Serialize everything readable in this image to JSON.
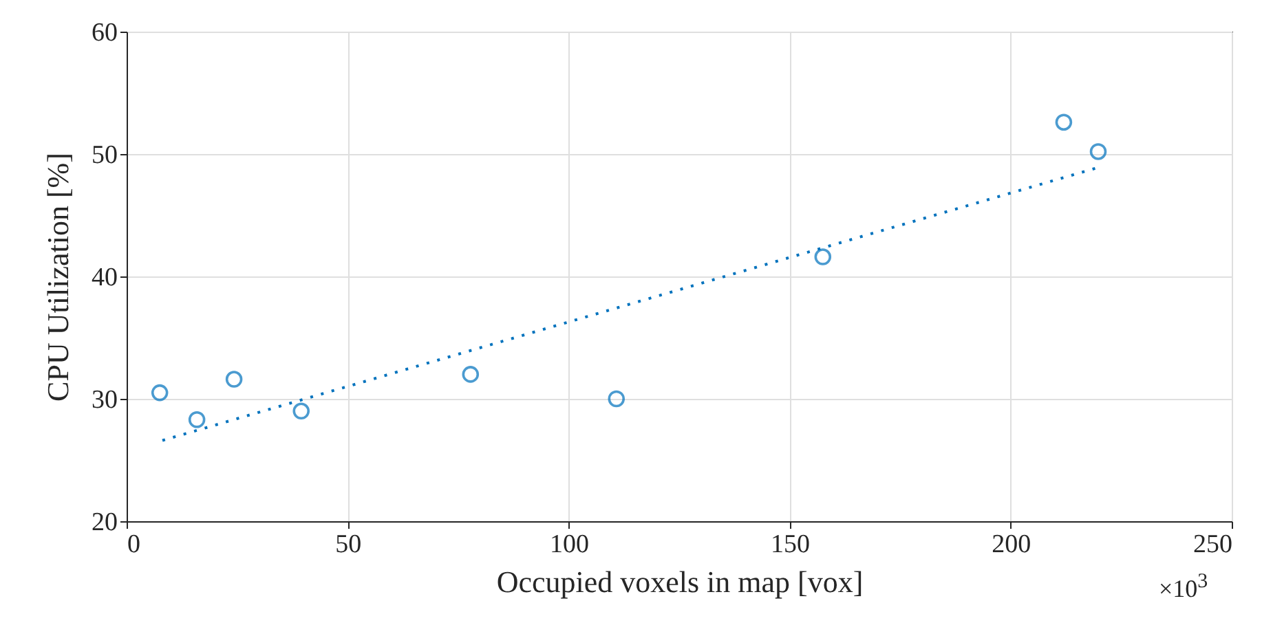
{
  "chart_data": {
    "type": "scatter",
    "xlabel": "Occupied voxels in map [vox]",
    "ylabel": "CPU Utilization [%]",
    "xlim": [
      0,
      250
    ],
    "xticks": [
      0,
      50,
      100,
      150,
      200,
      250
    ],
    "ylim": [
      20,
      60
    ],
    "yticks": [
      20,
      30,
      40,
      50,
      60
    ],
    "grid": true,
    "annotations": [
      "×10$^{3}$"
    ],
    "series": [
      {
        "color": "#0072bd",
        "marker": "circle",
        "x": [
          7.5,
          15.9,
          24.3,
          39.5,
          77.8,
          110.8,
          157.5,
          212,
          219.8
        ],
        "values": [
          30.5,
          28.3,
          31.6,
          29.0,
          32.0,
          30.0,
          41.6,
          52.6,
          50.2
        ]
      },
      {
        "type": "line",
        "color": "#0072bd",
        "line_style": "dotted",
        "marker": "none",
        "x": [
          8.1,
          219.8
        ],
        "values": [
          26.6,
          48.9
        ]
      }
    ]
  }
}
